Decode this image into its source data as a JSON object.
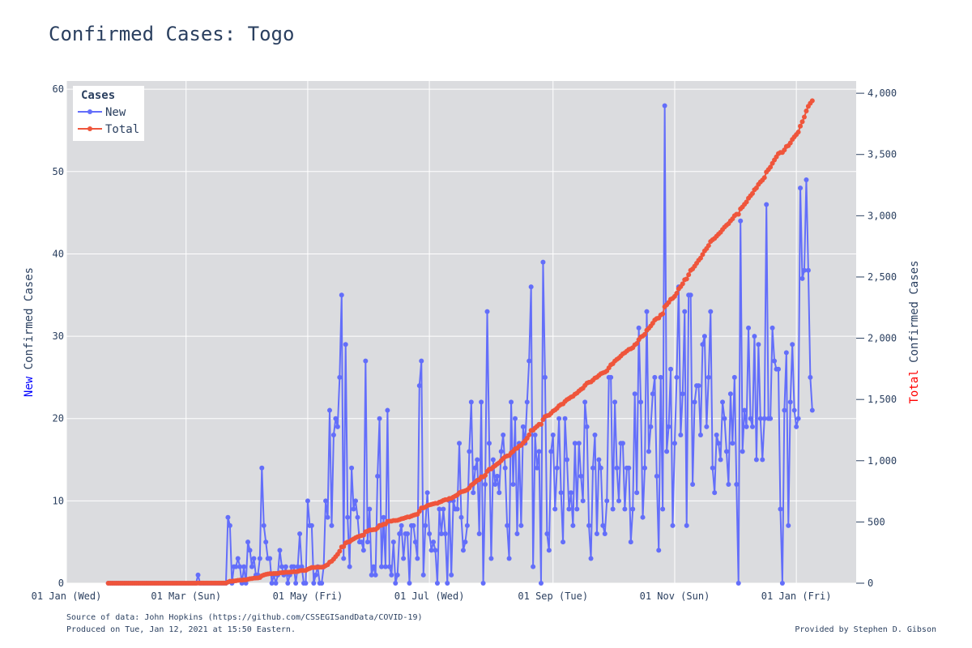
{
  "chart_data": {
    "type": "line",
    "title": "Confirmed Cases: Togo",
    "xlabel": "",
    "x_ticks": [
      "01 Jan (Wed)",
      "01 Mar (Sun)",
      "01 May (Fri)",
      "01 Jul (Wed)",
      "01 Sep (Tue)",
      "01 Nov (Sun)",
      "01 Jan (Fri)"
    ],
    "x_tick_dates": [
      "2020-01-01",
      "2020-03-01",
      "2020-05-01",
      "2020-07-01",
      "2020-09-01",
      "2020-11-01",
      "2021-01-01"
    ],
    "xlim": [
      "2020-01-01",
      "2021-01-31"
    ],
    "y_left": {
      "label_prefix": "New",
      "label_rest": " Confirmed Cases",
      "prefix_color": "#0000ff",
      "ylim": [
        0,
        61
      ],
      "ticks": [
        0,
        10,
        20,
        30,
        40,
        50,
        60
      ]
    },
    "y_right": {
      "label_prefix": "Total",
      "label_rest": " Confirmed Cases",
      "prefix_color": "#ff0000",
      "ylim": [
        0,
        4100
      ],
      "ticks": [
        0,
        500,
        1000,
        1500,
        2000,
        2500,
        3000,
        3500,
        4000
      ],
      "tick_labels": [
        "0",
        "500",
        "1,000",
        "1,500",
        "2,000",
        "2,500",
        "3,000",
        "3,500",
        "4,000"
      ]
    },
    "legend": {
      "title": "Cases",
      "placement": "top-left",
      "entries": [
        "New",
        "Total"
      ]
    },
    "grid": true,
    "start_date": "2020-01-22",
    "series": [
      {
        "name": "New",
        "color": "#636efa",
        "axis": "left",
        "values": [
          0,
          0,
          0,
          0,
          0,
          0,
          0,
          0,
          0,
          0,
          0,
          0,
          0,
          0,
          0,
          0,
          0,
          0,
          0,
          0,
          0,
          0,
          0,
          0,
          0,
          0,
          0,
          0,
          0,
          0,
          0,
          0,
          0,
          0,
          0,
          0,
          0,
          0,
          0,
          0,
          0,
          0,
          0,
          0,
          0,
          1,
          0,
          0,
          0,
          0,
          0,
          0,
          0,
          0,
          0,
          0,
          0,
          0,
          0,
          0,
          8,
          7,
          0,
          2,
          2,
          3,
          2,
          0,
          2,
          0,
          5,
          4,
          2,
          3,
          1,
          1,
          3,
          14,
          7,
          5,
          3,
          3,
          0,
          1,
          0,
          1,
          4,
          2,
          1,
          2,
          0,
          1,
          2,
          2,
          0,
          2,
          6,
          2,
          0,
          0,
          10,
          7,
          7,
          0,
          1,
          2,
          0,
          0,
          2,
          10,
          8,
          21,
          7,
          18,
          20,
          19,
          25,
          35,
          3,
          29,
          8,
          2,
          14,
          9,
          10,
          8,
          5,
          5,
          4,
          27,
          5,
          9,
          1,
          2,
          1,
          13,
          20,
          2,
          8,
          2,
          21,
          2,
          1,
          5,
          0,
          1,
          6,
          7,
          3,
          6,
          6,
          0,
          7,
          7,
          5,
          3,
          24,
          27,
          1,
          7,
          11,
          6,
          4,
          5,
          4,
          0,
          9,
          6,
          9,
          6,
          0,
          10,
          1,
          10,
          9,
          9,
          17,
          8,
          4,
          5,
          7,
          16,
          22,
          11,
          14,
          15,
          6,
          22,
          0,
          12,
          33,
          17,
          3,
          15,
          12,
          13,
          11,
          16,
          18,
          14,
          7,
          3,
          22,
          12,
          20,
          6,
          17,
          7,
          19,
          17,
          22,
          27,
          36,
          2,
          18,
          14,
          16,
          0,
          39,
          25,
          6,
          4,
          16,
          18,
          9,
          14,
          20,
          11,
          5,
          20,
          15,
          9,
          11,
          7,
          17,
          9,
          17,
          13,
          10,
          22,
          19,
          7,
          3,
          14,
          18,
          6,
          15,
          14,
          7,
          6,
          10,
          25,
          25,
          9,
          22,
          14,
          10,
          17,
          17,
          9,
          14,
          14,
          5,
          9,
          23,
          11,
          31,
          22,
          8,
          14,
          33,
          16,
          19,
          23,
          25,
          13,
          4,
          25,
          9,
          58,
          16,
          19,
          26,
          7,
          17,
          25,
          36,
          18,
          23,
          33,
          7,
          35,
          35,
          12,
          22,
          24,
          24,
          18,
          29,
          30,
          19,
          25,
          33,
          14,
          11,
          18,
          17,
          15,
          22,
          20,
          16,
          12,
          23,
          17,
          25,
          12,
          0,
          44,
          16,
          21,
          19,
          31,
          20,
          19,
          30,
          15,
          29,
          20,
          15,
          20,
          46,
          20,
          20,
          31,
          27,
          26,
          26,
          9,
          0,
          21,
          28,
          7,
          22,
          29,
          21,
          19,
          20,
          48,
          37,
          38,
          49,
          38,
          25,
          21
        ]
      },
      {
        "name": "Total",
        "color": "#ef553b",
        "axis": "right",
        "values": [
          0,
          0,
          0,
          0,
          0,
          0,
          0,
          0,
          0,
          0,
          0,
          0,
          0,
          0,
          0,
          0,
          0,
          0,
          0,
          0,
          0,
          0,
          0,
          0,
          0,
          0,
          0,
          0,
          0,
          0,
          0,
          0,
          0,
          0,
          0,
          0,
          0,
          0,
          0,
          0,
          0,
          0,
          0,
          0,
          0,
          1,
          1,
          1,
          1,
          1,
          1,
          1,
          1,
          1,
          1,
          1,
          1,
          1,
          1,
          1,
          9,
          16,
          16,
          18,
          20,
          23,
          25,
          25,
          27,
          27,
          32,
          36,
          38,
          41,
          42,
          43,
          46,
          60,
          67,
          72,
          75,
          78,
          78,
          79,
          79,
          80,
          84,
          86,
          87,
          89,
          89,
          90,
          92,
          94,
          94,
          96,
          102,
          104,
          104,
          104,
          114,
          121,
          128,
          128,
          129,
          131,
          131,
          131,
          133,
          143,
          151,
          172,
          179,
          197,
          217,
          236,
          261,
          296,
          299,
          328,
          336,
          338,
          352,
          361,
          371,
          379,
          384,
          389,
          393,
          420,
          425,
          434,
          435,
          437,
          438,
          451,
          471,
          473,
          481,
          483,
          504,
          506,
          507,
          512,
          512,
          513,
          519,
          526,
          529,
          535,
          541,
          541,
          548,
          555,
          560,
          563,
          587,
          614,
          615,
          622,
          633,
          639,
          643,
          648,
          652,
          652,
          661,
          667,
          676,
          682,
          682,
          692,
          693,
          703,
          712,
          721,
          738,
          746,
          750,
          755,
          762,
          778,
          800,
          811,
          825,
          840,
          846,
          868,
          868,
          880,
          913,
          930,
          933,
          948,
          960,
          973,
          984,
          1000,
          1018,
          1032,
          1039,
          1042,
          1064,
          1076,
          1096,
          1102,
          1119,
          1126,
          1145,
          1162,
          1184,
          1211,
          1247,
          1249,
          1267,
          1281,
          1297,
          1297,
          1336,
          1361,
          1367,
          1371,
          1387,
          1405,
          1414,
          1428,
          1448,
          1459,
          1464,
          1484,
          1499,
          1508,
          1519,
          1526,
          1543,
          1552,
          1569,
          1582,
          1592,
          1614,
          1633,
          1640,
          1643,
          1657,
          1675,
          1681,
          1696,
          1710,
          1717,
          1723,
          1733,
          1758,
          1783,
          1792,
          1814,
          1828,
          1838,
          1855,
          1872,
          1881,
          1895,
          1909,
          1914,
          1923,
          1946,
          1957,
          1988,
          2010,
          2018,
          2032,
          2065,
          2081,
          2100,
          2123,
          2148,
          2161,
          2165,
          2190,
          2199,
          2257,
          2273,
          2292,
          2318,
          2325,
          2342,
          2367,
          2403,
          2421,
          2444,
          2477,
          2484,
          2519,
          2554,
          2566,
          2588,
          2612,
          2636,
          2654,
          2683,
          2713,
          2732,
          2757,
          2790,
          2804,
          2815,
          2833,
          2850,
          2865,
          2887,
          2907,
          2923,
          2935,
          2958,
          2975,
          3000,
          3012,
          3012,
          3056,
          3072,
          3093,
          3112,
          3143,
          3163,
          3182,
          3212,
          3227,
          3256,
          3276,
          3291,
          3311,
          3357,
          3377,
          3397,
          3428,
          3455,
          3481,
          3507,
          3516,
          3516,
          3537,
          3565,
          3572,
          3594,
          3623,
          3644,
          3663,
          3683,
          3731,
          3768,
          3806,
          3855,
          3893,
          3918,
          3939
        ]
      }
    ]
  },
  "footer": {
    "source": "Source of data: John Hopkins (https://github.com/CSSEGISandData/COVID-19)",
    "produced": "Produced on Tue, Jan 12, 2021 at 15:50 Eastern.",
    "credit": "Provided by Stephen D. Gibson"
  }
}
